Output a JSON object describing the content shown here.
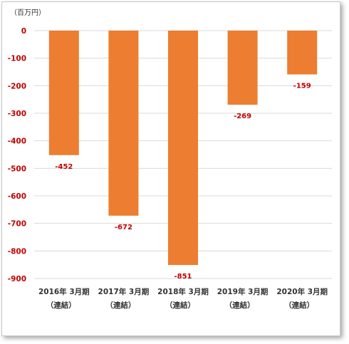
{
  "chart_data": {
    "type": "bar",
    "unit_label": "（百万円）",
    "categories": [
      [
        "2016年 3月期",
        "（連結）"
      ],
      [
        "2017年 3月期",
        "（連結）"
      ],
      [
        "2018年 3月期",
        "（連結）"
      ],
      [
        "2019年 3月期",
        "（連結）"
      ],
      [
        "2020年 3月期",
        "（連結）"
      ]
    ],
    "values": [
      -452,
      -672,
      -851,
      -269,
      -159
    ],
    "data_labels": [
      "-452",
      "-672",
      "-851",
      "-269",
      "-159"
    ],
    "yticks": [
      "0",
      "-100",
      "-200",
      "-300",
      "-400",
      "-500",
      "-600",
      "-700",
      "-800",
      "-900"
    ],
    "ylim": [
      -900,
      0
    ],
    "grid": true,
    "colors": {
      "bar": "#ed7d31",
      "label": "#c00000",
      "grid": "#d9d9d9"
    }
  }
}
